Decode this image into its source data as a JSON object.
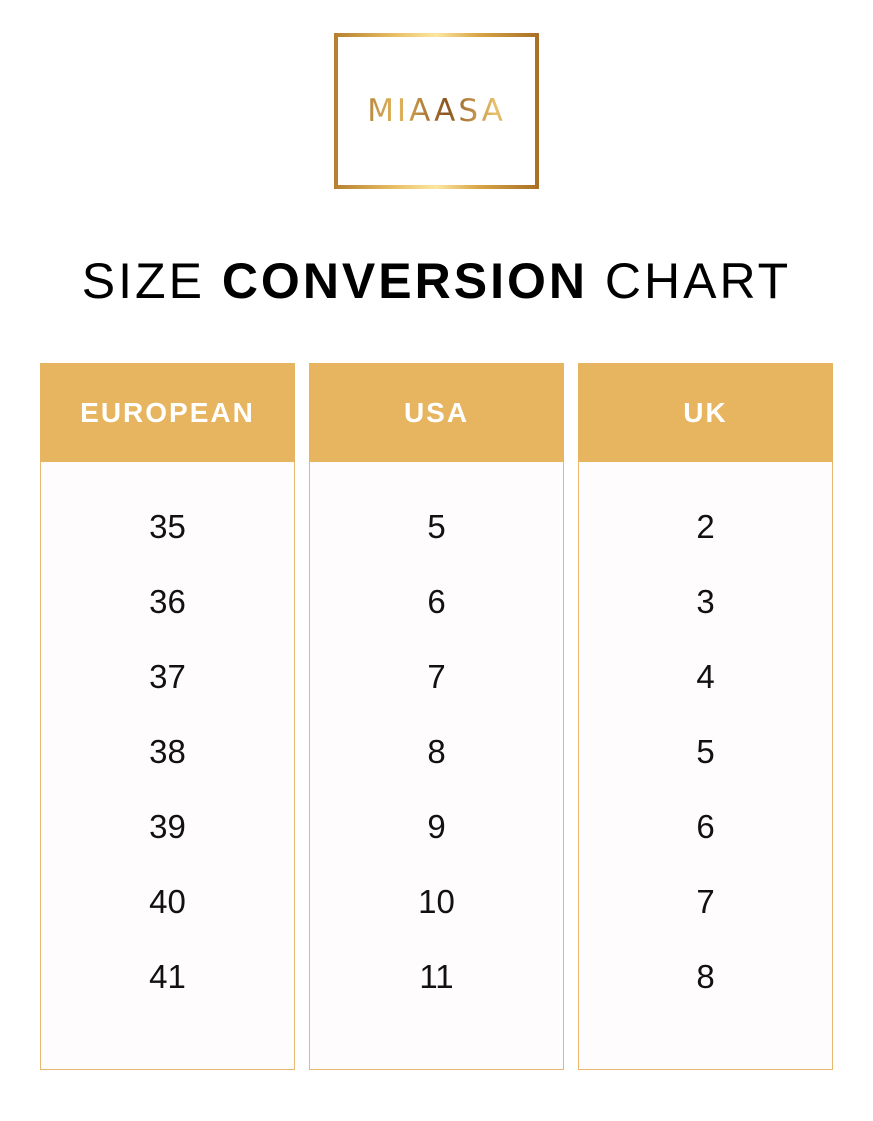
{
  "logo": {
    "text": "MIAASA",
    "border_color": "#d9a649"
  },
  "title": {
    "pre": "SIZE ",
    "bold": "CONVERSION",
    "post": " CHART"
  },
  "colors": {
    "header_bg": "#e7b45f",
    "header_text": "#ffffff",
    "border": "#e6b870"
  },
  "columns": [
    {
      "header": "EUROPEAN",
      "values": [
        "35",
        "36",
        "37",
        "38",
        "39",
        "40",
        "41"
      ]
    },
    {
      "header": "USA",
      "values": [
        "5",
        "6",
        "7",
        "8",
        "9",
        "10",
        "11"
      ]
    },
    {
      "header": "UK",
      "values": [
        "2",
        "3",
        "4",
        "5",
        "6",
        "7",
        "8"
      ]
    }
  ]
}
